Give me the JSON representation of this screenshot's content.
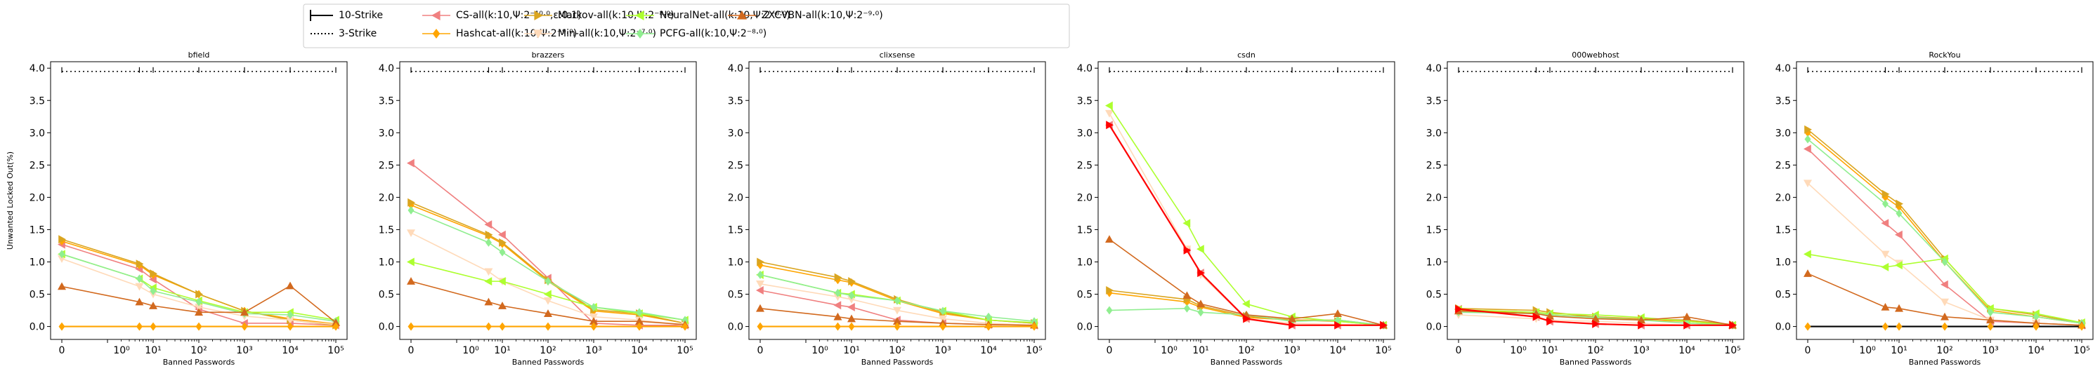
{
  "figure": {
    "ylabel": "Unwanted Locked Out(%)",
    "xlabel": "Banned Passwords"
  },
  "legend": {
    "placement": "top-center",
    "strikes": [
      {
        "label": "10-Strike",
        "style": "solid"
      },
      {
        "label": "3-Strike",
        "style": "dotted"
      }
    ],
    "series": [
      {
        "key": "cs",
        "label": "CS-all(k:10,Ψ:2⁻¹⁰·⁰,ε:0.1)",
        "color": "#f08080",
        "marker": "tri-left"
      },
      {
        "key": "hashcat",
        "label": "Hashcat-all(k:10,Ψ:2⁻⁹·⁰)",
        "color": "#ffa500",
        "marker": "diamond"
      },
      {
        "key": "markov",
        "label": "Markov-all(k:10,Ψ:2⁻⁸·⁰)",
        "color": "#daa520",
        "marker": "tri-right"
      },
      {
        "key": "min",
        "label": "Min-all(k:10,Ψ:2⁻⁷·⁰)",
        "color": "#ffdab9",
        "marker": "tri-down"
      },
      {
        "key": "neural",
        "label": "NeuralNet-all(k:10,Ψ:2⁻⁸·⁰)",
        "color": "#adff2f",
        "marker": "tri-left"
      },
      {
        "key": "pcfg",
        "label": "PCFG-all(k:10,Ψ:2⁻⁸·⁰)",
        "color": "#90ee90",
        "marker": "diamond"
      },
      {
        "key": "zxcvbn",
        "label": "ZXCVBN-all(k:10,Ψ:2⁻⁹·⁰)",
        "color": "#d2691e",
        "marker": "tri-up"
      }
    ]
  },
  "chart_data": [
    {
      "type": "line",
      "title": "bfield",
      "xscale": "symlog",
      "ylim": [
        -0.2,
        4.1
      ],
      "xticks": [
        "0",
        "10⁰",
        "10¹",
        "10²",
        "10³",
        "10⁴",
        "10⁵"
      ],
      "yticks": [
        "0.0",
        "0.5",
        "1.0",
        "1.5",
        "2.0",
        "2.5",
        "3.0",
        "3.5",
        "4.0"
      ],
      "x": [
        0,
        5,
        10,
        100,
        1000,
        10000,
        100000
      ],
      "series": [
        {
          "key": "cs",
          "values": [
            1.27,
            0.89,
            0.73,
            0.27,
            0.05,
            0.05,
            0.02
          ]
        },
        {
          "key": "hashcat",
          "values": [
            1.32,
            0.95,
            0.8,
            0.5,
            0.24,
            0.12,
            0.04
          ]
        },
        {
          "key": "markov",
          "values": [
            1.35,
            0.97,
            0.82,
            0.5,
            0.24,
            0.1,
            0.02
          ]
        },
        {
          "key": "min",
          "values": [
            1.05,
            0.62,
            0.5,
            0.3,
            0.16,
            0.1,
            0.03
          ]
        },
        {
          "key": "neural",
          "values": [
            1.12,
            0.74,
            0.6,
            0.4,
            0.22,
            0.22,
            0.1
          ]
        },
        {
          "key": "pcfg",
          "values": [
            1.12,
            0.74,
            0.55,
            0.38,
            0.2,
            0.18,
            0.08
          ]
        },
        {
          "key": "zxcvbn",
          "values": [
            0.62,
            0.38,
            0.32,
            0.22,
            0.22,
            0.63,
            0.06
          ]
        }
      ],
      "ten_strike": {
        "key": "markov",
        "values": [
          0,
          0,
          0,
          0,
          0,
          0,
          0
        ]
      },
      "three_strike": {
        "level": 3.95,
        "tick_x": [
          5,
          10,
          100,
          1000,
          10000,
          100000
        ]
      }
    },
    {
      "type": "line",
      "title": "brazzers",
      "xscale": "symlog",
      "ylim": [
        -0.2,
        4.1
      ],
      "xticks": [
        "0",
        "10⁰",
        "10¹",
        "10²",
        "10³",
        "10⁴",
        "10⁵"
      ],
      "yticks": [
        "0.0",
        "0.5",
        "1.0",
        "1.5",
        "2.0",
        "2.5",
        "3.0",
        "3.5",
        "4.0"
      ],
      "x": [
        0,
        5,
        10,
        100,
        1000,
        10000,
        100000
      ],
      "series": [
        {
          "key": "cs",
          "values": [
            2.53,
            1.58,
            1.42,
            0.75,
            0.05,
            0.02,
            0.02
          ]
        },
        {
          "key": "hashcat",
          "values": [
            1.88,
            1.4,
            1.28,
            0.7,
            0.24,
            0.18,
            0.05
          ]
        },
        {
          "key": "markov",
          "values": [
            1.92,
            1.42,
            1.3,
            0.72,
            0.26,
            0.2,
            0.05
          ]
        },
        {
          "key": "min",
          "values": [
            1.45,
            0.85,
            0.7,
            0.4,
            0.15,
            0.1,
            0.02
          ]
        },
        {
          "key": "neural",
          "values": [
            1.0,
            0.7,
            0.7,
            0.5,
            0.3,
            0.2,
            0.1
          ]
        },
        {
          "key": "pcfg",
          "values": [
            1.8,
            1.3,
            1.15,
            0.7,
            0.3,
            0.22,
            0.1
          ]
        },
        {
          "key": "zxcvbn",
          "values": [
            0.7,
            0.38,
            0.32,
            0.2,
            0.08,
            0.08,
            0.03
          ]
        }
      ],
      "ten_strike": {
        "key": "markov",
        "values": [
          0,
          0,
          0,
          0,
          0,
          0,
          0
        ]
      },
      "three_strike": {
        "level": 3.95,
        "tick_x": [
          5,
          10,
          100,
          1000,
          10000,
          100000
        ]
      }
    },
    {
      "type": "line",
      "title": "clixsense",
      "xscale": "symlog",
      "ylim": [
        -0.2,
        4.1
      ],
      "xticks": [
        "0",
        "10⁰",
        "10¹",
        "10²",
        "10³",
        "10⁴",
        "10⁵"
      ],
      "yticks": [
        "0.0",
        "0.5",
        "1.0",
        "1.5",
        "2.0",
        "2.5",
        "3.0",
        "3.5",
        "4.0"
      ],
      "x": [
        0,
        5,
        10,
        100,
        1000,
        10000,
        100000
      ],
      "series": [
        {
          "key": "cs",
          "values": [
            0.56,
            0.33,
            0.3,
            0.1,
            0.05,
            0.03,
            0.02
          ]
        },
        {
          "key": "hashcat",
          "values": [
            0.95,
            0.72,
            0.68,
            0.4,
            0.2,
            0.1,
            0.05
          ]
        },
        {
          "key": "markov",
          "values": [
            1.0,
            0.76,
            0.7,
            0.42,
            0.22,
            0.1,
            0.05
          ]
        },
        {
          "key": "min",
          "values": [
            0.66,
            0.46,
            0.42,
            0.25,
            0.12,
            0.05,
            0.02
          ]
        },
        {
          "key": "neural",
          "values": [
            0.8,
            0.52,
            0.5,
            0.4,
            0.24,
            0.1,
            0.06
          ]
        },
        {
          "key": "pcfg",
          "values": [
            0.8,
            0.52,
            0.48,
            0.4,
            0.24,
            0.15,
            0.08
          ]
        },
        {
          "key": "zxcvbn",
          "values": [
            0.28,
            0.15,
            0.12,
            0.08,
            0.05,
            0.03,
            0.02
          ]
        }
      ],
      "ten_strike": {
        "key": "markov",
        "values": [
          0,
          0,
          0,
          0,
          0,
          0,
          0
        ]
      },
      "three_strike": {
        "level": 3.95,
        "tick_x": [
          5,
          10,
          100,
          1000,
          10000,
          100000
        ]
      }
    },
    {
      "type": "line",
      "title": "csdn",
      "xscale": "symlog",
      "ylim": [
        -0.2,
        4.1
      ],
      "xticks": [
        "0",
        "10⁰",
        "10¹",
        "10²",
        "10³",
        "10⁴",
        "10⁵"
      ],
      "yticks": [
        "0.0",
        "0.5",
        "1.0",
        "1.5",
        "2.0",
        "2.5",
        "3.0",
        "3.5",
        "4.0"
      ],
      "x": [
        0,
        5,
        10,
        100,
        1000,
        10000,
        100000
      ],
      "series": [
        {
          "key": "cs",
          "values": [
            3.12,
            1.18,
            0.83,
            0.12,
            0.02,
            0.02,
            0.02
          ]
        },
        {
          "key": "hashcat",
          "values": [
            0.52,
            0.38,
            0.3,
            0.14,
            0.1,
            0.1,
            0.02
          ]
        },
        {
          "key": "markov",
          "values": [
            0.56,
            0.42,
            0.32,
            0.16,
            0.1,
            0.08,
            0.02
          ]
        },
        {
          "key": "min",
          "values": [
            3.3,
            1.2,
            0.8,
            0.12,
            0.05,
            0.03,
            0.02
          ]
        },
        {
          "key": "neural",
          "values": [
            3.42,
            1.6,
            1.2,
            0.35,
            0.15,
            0.08,
            0.02
          ]
        },
        {
          "key": "pcfg",
          "values": [
            0.25,
            0.28,
            0.22,
            0.18,
            0.08,
            0.1,
            0.02
          ]
        },
        {
          "key": "zxcvbn",
          "values": [
            1.35,
            0.48,
            0.35,
            0.18,
            0.12,
            0.2,
            0.02
          ]
        }
      ],
      "ten_strike": {
        "key": "cs",
        "values": [
          3.12,
          1.18,
          0.83,
          0.12,
          0.02,
          0.02,
          0.02
        ]
      },
      "three_strike": {
        "level": 3.95,
        "tick_x": [
          5,
          10,
          100,
          1000,
          10000,
          100000
        ]
      }
    },
    {
      "type": "line",
      "title": "000webhost",
      "xscale": "symlog",
      "ylim": [
        -0.2,
        4.1
      ],
      "xticks": [
        "0",
        "10⁰",
        "10¹",
        "10²",
        "10³",
        "10⁴",
        "10⁵"
      ],
      "yticks": [
        "0.0",
        "0.5",
        "1.0",
        "1.5",
        "2.0",
        "2.5",
        "3.0",
        "3.5",
        "4.0"
      ],
      "x": [
        0,
        5,
        10,
        100,
        1000,
        10000,
        100000
      ],
      "series": [
        {
          "key": "cs",
          "values": [
            0.27,
            0.15,
            0.08,
            0.04,
            0.02,
            0.02,
            0.02
          ]
        },
        {
          "key": "hashcat",
          "values": [
            0.25,
            0.2,
            0.18,
            0.15,
            0.1,
            0.08,
            0.02
          ]
        },
        {
          "key": "markov",
          "values": [
            0.28,
            0.25,
            0.22,
            0.15,
            0.12,
            0.1,
            0.03
          ]
        },
        {
          "key": "min",
          "values": [
            0.18,
            0.12,
            0.1,
            0.08,
            0.05,
            0.02,
            0.02
          ]
        },
        {
          "key": "neural",
          "values": [
            0.26,
            0.22,
            0.2,
            0.18,
            0.14,
            0.08,
            0.02
          ]
        },
        {
          "key": "pcfg",
          "values": [
            0.22,
            0.2,
            0.18,
            0.14,
            0.1,
            0.05,
            0.02
          ]
        },
        {
          "key": "zxcvbn",
          "values": [
            0.24,
            0.2,
            0.16,
            0.12,
            0.1,
            0.15,
            0.02
          ]
        }
      ],
      "ten_strike": {
        "key": "cs",
        "values": [
          0.27,
          0.15,
          0.08,
          0.04,
          0.02,
          0.02,
          0.02
        ]
      },
      "three_strike": {
        "level": 3.95,
        "tick_x": [
          5,
          10,
          100,
          1000,
          10000,
          100000
        ]
      }
    },
    {
      "type": "line",
      "title": "RockYou",
      "xscale": "symlog",
      "ylim": [
        -0.2,
        4.1
      ],
      "xticks": [
        "0",
        "10⁰",
        "10¹",
        "10²",
        "10³",
        "10⁴",
        "10⁵"
      ],
      "yticks": [
        "0.0",
        "0.5",
        "1.0",
        "1.5",
        "2.0",
        "2.5",
        "3.0",
        "3.5",
        "4.0"
      ],
      "x": [
        0,
        5,
        10,
        100,
        1000,
        10000,
        100000
      ],
      "series": [
        {
          "key": "cs",
          "values": [
            2.75,
            1.6,
            1.42,
            0.65,
            0.08,
            0.05,
            0.02
          ]
        },
        {
          "key": "hashcat",
          "values": [
            3.0,
            2.0,
            1.85,
            1.0,
            0.25,
            0.15,
            0.05
          ]
        },
        {
          "key": "markov",
          "values": [
            3.05,
            2.05,
            1.9,
            1.05,
            0.28,
            0.18,
            0.05
          ]
        },
        {
          "key": "min",
          "values": [
            2.22,
            1.12,
            0.98,
            0.38,
            0.1,
            0.05,
            0.02
          ]
        },
        {
          "key": "neural",
          "values": [
            1.12,
            0.92,
            0.95,
            1.05,
            0.28,
            0.2,
            0.06
          ]
        },
        {
          "key": "pcfg",
          "values": [
            2.9,
            1.9,
            1.75,
            1.0,
            0.22,
            0.15,
            0.05
          ]
        },
        {
          "key": "zxcvbn",
          "values": [
            0.82,
            0.3,
            0.28,
            0.15,
            0.1,
            0.05,
            0.02
          ]
        }
      ],
      "ten_strike": {
        "key": "black",
        "values": [
          0,
          0,
          0,
          0,
          0,
          0,
          0
        ]
      },
      "three_strike": {
        "level": 3.95,
        "tick_x": [
          5,
          10,
          100,
          1000,
          10000,
          100000
        ]
      }
    }
  ]
}
